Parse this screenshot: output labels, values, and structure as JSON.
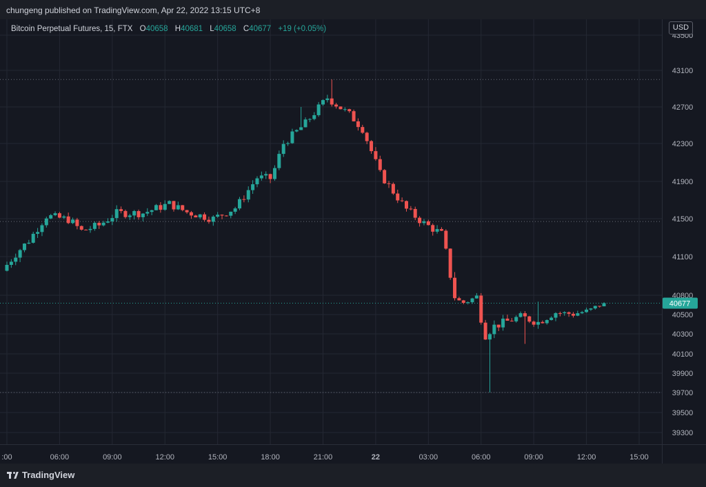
{
  "header": {
    "published_text": "chungeng published on TradingView.com, Apr 22, 2022 13:15 UTC+8"
  },
  "legend": {
    "symbol": "Bitcoin Perpetual Futures, 15, FTX",
    "o_label": "O",
    "o": "40658",
    "h_label": "H",
    "h": "40681",
    "l_label": "L",
    "l": "40658",
    "c_label": "C",
    "c": "40677",
    "change": "+19 (+0.05%)"
  },
  "currency": "USD",
  "footer": {
    "brand": "TradingView",
    "logo_icon": "tradingview-logo-icon"
  },
  "colors": {
    "up": "#26a69a",
    "down": "#ef5350",
    "background": "#151821",
    "grid": "#242833"
  },
  "chart_data": {
    "type": "candlestick",
    "interval": "15",
    "y_ticks": [
      39300,
      39500,
      39700,
      39900,
      40100,
      40300,
      40500,
      40800,
      41100,
      41500,
      41900,
      42300,
      42700,
      43100,
      43500
    ],
    "x_ticks": [
      {
        "label": ":00",
        "t": 3
      },
      {
        "label": "06:00",
        "t": 6
      },
      {
        "label": "09:00",
        "t": 9
      },
      {
        "label": "12:00",
        "t": 12
      },
      {
        "label": "15:00",
        "t": 15
      },
      {
        "label": "18:00",
        "t": 18
      },
      {
        "label": "21:00",
        "t": 21
      },
      {
        "label": "22",
        "t": 24
      },
      {
        "label": "03:00",
        "t": 27
      },
      {
        "label": "06:00",
        "t": 30
      },
      {
        "label": "09:00",
        "t": 33
      },
      {
        "label": "12:00",
        "t": 36
      },
      {
        "label": "15:00",
        "t": 39
      }
    ],
    "horizontal_levels": [
      {
        "value": 43000,
        "color": "#6b6f7a"
      },
      {
        "value": 41470,
        "color": "#6b6f7a"
      },
      {
        "value": 40677,
        "color": "#26a69a"
      },
      {
        "value": 39700,
        "color": "#6b6f7a"
      }
    ],
    "last_price": "40677",
    "anchors": [
      {
        "t": 3.0,
        "p": 40990
      },
      {
        "t": 4.5,
        "p": 41270
      },
      {
        "t": 5.5,
        "p": 41530
      },
      {
        "t": 6.8,
        "p": 41490
      },
      {
        "t": 7.5,
        "p": 41370
      },
      {
        "t": 8.5,
        "p": 41430
      },
      {
        "t": 9.5,
        "p": 41560
      },
      {
        "t": 11.0,
        "p": 41560
      },
      {
        "t": 12.5,
        "p": 41660
      },
      {
        "t": 13.5,
        "p": 41570
      },
      {
        "t": 15.0,
        "p": 41500
      },
      {
        "t": 16.3,
        "p": 41620
      },
      {
        "t": 17.5,
        "p": 41940
      },
      {
        "t": 18.3,
        "p": 41930
      },
      {
        "t": 19.0,
        "p": 42300
      },
      {
        "t": 20.2,
        "p": 42510
      },
      {
        "t": 21.0,
        "p": 42690
      },
      {
        "t": 21.5,
        "p": 42800
      },
      {
        "t": 22.8,
        "p": 42610
      },
      {
        "t": 23.5,
        "p": 42460
      },
      {
        "t": 24.5,
        "p": 41980
      },
      {
        "t": 26.0,
        "p": 41600
      },
      {
        "t": 27.0,
        "p": 41450
      },
      {
        "t": 28.0,
        "p": 41340
      },
      {
        "t": 28.8,
        "p": 40730
      },
      {
        "t": 29.3,
        "p": 40680
      },
      {
        "t": 30.0,
        "p": 40780
      },
      {
        "t": 30.4,
        "p": 40270
      },
      {
        "t": 31.0,
        "p": 40380
      },
      {
        "t": 32.5,
        "p": 40480
      },
      {
        "t": 33.5,
        "p": 40420
      },
      {
        "t": 34.5,
        "p": 40530
      },
      {
        "t": 35.5,
        "p": 40510
      },
      {
        "t": 36.4,
        "p": 40560
      },
      {
        "t": 37.2,
        "p": 40677
      }
    ],
    "spikes": [
      {
        "t": 21.4,
        "high": 43000
      },
      {
        "t": 19.8,
        "high": 42700
      },
      {
        "t": 30.45,
        "low": 39700
      },
      {
        "t": 32.4,
        "low": 40200
      },
      {
        "t": 33.3,
        "high": 40700
      }
    ]
  }
}
